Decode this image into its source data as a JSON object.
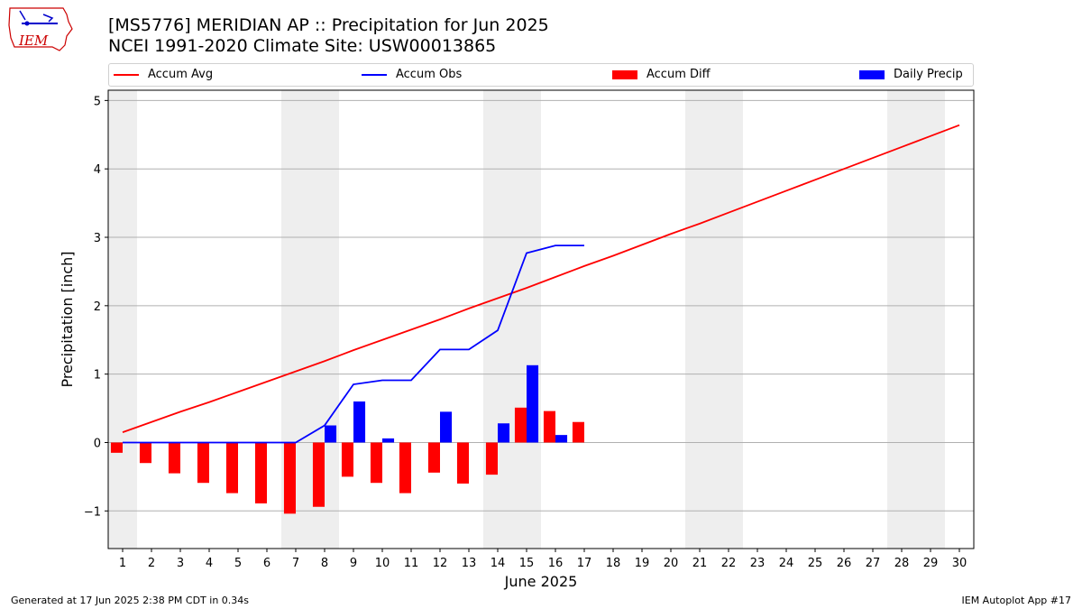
{
  "header": {
    "title_line1": "[MS5776] MERIDIAN AP :: Precipitation for Jun 2025",
    "title_line2": "NCEI 1991-2020 Climate Site: USW00013865"
  },
  "logo": {
    "text": "IEM"
  },
  "footer": {
    "left": "Generated at 17 Jun 2025 2:38 PM CDT in 0.34s",
    "right": "IEM Autoplot App #17"
  },
  "colors": {
    "accum_avg": "#ff0000",
    "accum_obs": "#0000ff",
    "accum_diff": "#ff0000",
    "daily_precip": "#0000ff",
    "weekend_shade": "#eeeeee",
    "grid": "#b0b0b0"
  },
  "chart_data": {
    "type": "bar",
    "title": "[MS5776] MERIDIAN AP :: Precipitation for Jun 2025",
    "subtitle": "NCEI 1991-2020 Climate Site: USW00013865",
    "xlabel": "June 2025",
    "ylabel": "Precipitation [inch]",
    "ylim": [
      -1.55,
      5.15
    ],
    "yticks": [
      -1,
      0,
      1,
      2,
      3,
      4,
      5
    ],
    "ytick_labels": [
      "−1",
      "0",
      "1",
      "2",
      "3",
      "4",
      "5"
    ],
    "xlim": [
      0.5,
      30.5
    ],
    "x": [
      1,
      2,
      3,
      4,
      5,
      6,
      7,
      8,
      9,
      10,
      11,
      12,
      13,
      14,
      15,
      16,
      17,
      18,
      19,
      20,
      21,
      22,
      23,
      24,
      25,
      26,
      27,
      28,
      29,
      30
    ],
    "xtick_labels": [
      "1",
      "2",
      "3",
      "4",
      "5",
      "6",
      "7",
      "8",
      "9",
      "10",
      "11",
      "12",
      "13",
      "14",
      "15",
      "16",
      "17",
      "18",
      "19",
      "20",
      "21",
      "22",
      "23",
      "24",
      "25",
      "26",
      "27",
      "28",
      "29",
      "30"
    ],
    "grid": "horizontal",
    "legend_position": "top",
    "weekend_shading": [
      [
        0.5,
        1.5
      ],
      [
        6.5,
        8.5
      ],
      [
        13.5,
        15.5
      ],
      [
        20.5,
        22.5
      ],
      [
        27.5,
        29.5
      ]
    ],
    "series": [
      {
        "name": "Accum Avg",
        "kind": "line",
        "x": [
          1,
          2,
          3,
          4,
          5,
          6,
          7,
          8,
          9,
          10,
          11,
          12,
          13,
          14,
          15,
          16,
          17,
          18,
          19,
          20,
          21,
          22,
          23,
          24,
          25,
          26,
          27,
          28,
          29,
          30
        ],
        "values": [
          0.15,
          0.3,
          0.45,
          0.59,
          0.74,
          0.89,
          1.04,
          1.19,
          1.35,
          1.5,
          1.65,
          1.8,
          1.96,
          2.11,
          2.26,
          2.42,
          2.58,
          2.73,
          2.89,
          3.05,
          3.2,
          3.36,
          3.52,
          3.68,
          3.84,
          4.0,
          4.16,
          4.32,
          4.48,
          4.64
        ]
      },
      {
        "name": "Accum Obs",
        "kind": "line",
        "x": [
          1,
          2,
          3,
          4,
          5,
          6,
          7,
          8,
          9,
          10,
          11,
          12,
          13,
          14,
          15,
          16,
          17
        ],
        "values": [
          0.0,
          0.0,
          0.0,
          0.0,
          0.0,
          0.0,
          0.0,
          0.25,
          0.85,
          0.91,
          0.91,
          1.36,
          1.36,
          1.64,
          2.77,
          2.88,
          2.88
        ]
      },
      {
        "name": "Accum Diff",
        "kind": "bar",
        "x": [
          1,
          2,
          3,
          4,
          5,
          6,
          7,
          8,
          9,
          10,
          11,
          12,
          13,
          14,
          15,
          16,
          17
        ],
        "values": [
          -0.15,
          -0.3,
          -0.45,
          -0.59,
          -0.74,
          -0.89,
          -1.04,
          -0.94,
          -0.5,
          -0.59,
          -0.74,
          -0.44,
          -0.6,
          -0.47,
          0.51,
          0.46,
          0.3
        ]
      },
      {
        "name": "Daily Precip",
        "kind": "bar",
        "x": [
          1,
          2,
          3,
          4,
          5,
          6,
          7,
          8,
          9,
          10,
          11,
          12,
          13,
          14,
          15,
          16,
          17
        ],
        "values": [
          0,
          0,
          0,
          0,
          0,
          0,
          0,
          0.25,
          0.6,
          0.06,
          0,
          0.45,
          0,
          0.28,
          1.13,
          0.11,
          0
        ]
      }
    ]
  }
}
